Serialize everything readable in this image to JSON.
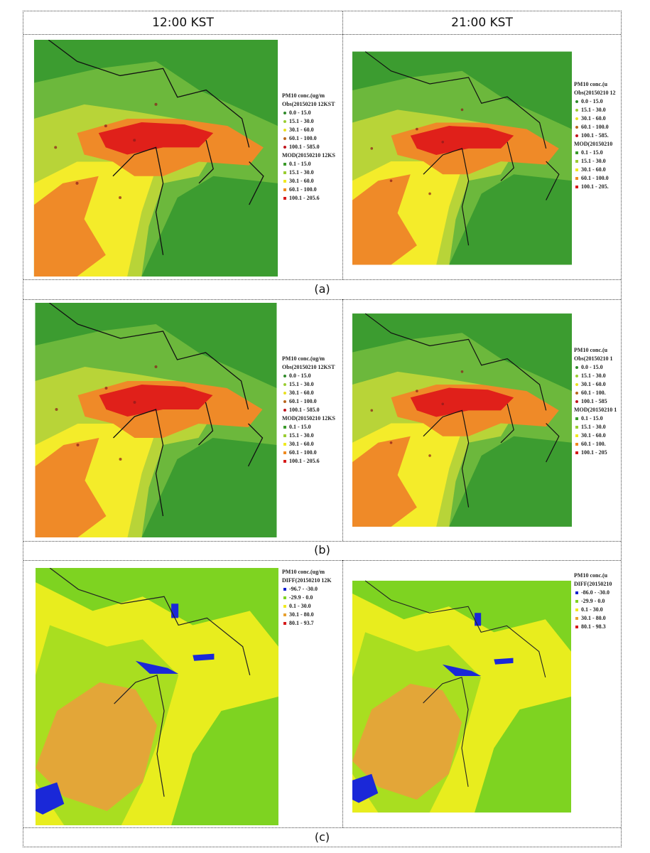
{
  "header": [
    "12:00  KST",
    "21:00  KST"
  ],
  "rows": [
    {
      "label": "(a)",
      "panels": [
        {
          "title": "PM10 conc.(ug/m",
          "groups": [
            {
              "heading": "Obs(20150210 12KST",
              "items": [
                "0.0 - 15.0",
                "15.1 - 30.0",
                "30.1 - 60.0",
                "60.1 - 100.0",
                "100.1 - 585.0"
              ]
            },
            {
              "heading": "MOD(20150210 12KS",
              "items": [
                "0.1 - 15.0",
                "15.1 - 30.0",
                "30.1 - 60.0",
                "60.1 - 100.0",
                "100.1 - 205.6"
              ]
            }
          ]
        },
        {
          "title": "PM10 conc.(u",
          "groups": [
            {
              "heading": "Obs(20150210 12",
              "items": [
                "0.0 - 15.0",
                "15.1 - 30.0",
                "30.1 - 60.0",
                "60.1 - 100.0",
                "100.1 - 585."
              ]
            },
            {
              "heading": "MOD(20150210",
              "items": [
                "0.1 - 15.0",
                "15.1 - 30.0",
                "30.1 - 60.0",
                "60.1 - 100.0",
                "100.1 - 205."
              ]
            }
          ]
        }
      ]
    },
    {
      "label": "(b)",
      "panels": [
        {
          "title": "PM10 conc.(ug/m",
          "groups": [
            {
              "heading": "Obs(20150210 12KST",
              "items": [
                "0.0 - 15.0",
                "15.1 - 30.0",
                "30.1 - 60.0",
                "60.1 - 100.0",
                "100.1 - 585.0"
              ]
            },
            {
              "heading": "MOD(20150210 12KS",
              "items": [
                "0.1 - 15.0",
                "15.1 - 30.0",
                "30.1 - 60.0",
                "60.1 - 100.0",
                "100.1 - 205.6"
              ]
            }
          ]
        },
        {
          "title": "PM10 conc.(u",
          "groups": [
            {
              "heading": "Obs(20150210 1",
              "items": [
                "0.0 - 15.0",
                "15.1 - 30.0",
                "30.1 - 60.0",
                "60.1 - 100.",
                "100.1 - 585"
              ]
            },
            {
              "heading": "MOD(20150210 1",
              "items": [
                "0.1 - 15.0",
                "15.1 - 30.0",
                "30.1 - 60.0",
                "60.1 - 100.",
                "100.1 - 205"
              ]
            }
          ]
        }
      ]
    },
    {
      "label": "(c)",
      "panels": [
        {
          "title": "PM10 conc.(ug/m",
          "groups": [
            {
              "heading": "DIFF(20150210 12K",
              "items": [
                "-96.7 - -30.0",
                "-29.9 - 0.0",
                "0.1 - 30.0",
                "30.1 - 80.0",
                "80.1 - 93.7"
              ]
            }
          ]
        },
        {
          "title": "PM10 conc.(u",
          "groups": [
            {
              "heading": "DIFF(20150210",
              "items": [
                "-86.0 - -30.0",
                "-29.9 - 0.0",
                "0.1 - 30.0",
                "30.1 - 80.0",
                "80.1 - 98.3"
              ]
            }
          ]
        }
      ]
    }
  ]
}
